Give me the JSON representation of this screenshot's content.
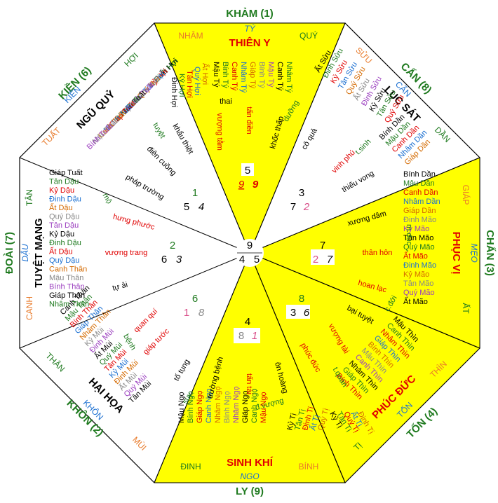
{
  "colors": {
    "yellow": "#ffff00",
    "trigram": "#1f7a1f",
    "branch_orange": "#e87a2a",
    "star_red": "#e00000",
    "branch_blue": "#1a6fd1",
    "pink": "#d94f8a"
  },
  "trigrams": {
    "kham": "KHẢM (1)",
    "can": "CẤN (8)",
    "chan": "CHẤN (3)",
    "ton": "TỐN (4)",
    "ly": "LY (9)",
    "khon": "KHÔN (2)",
    "doai": "ĐOÀI (7)",
    "kien": "KIỀN (6)"
  },
  "branches": {
    "nham": "NHÂM",
    "ty_n": "TÝ",
    "quy": "QUÝ",
    "suu": "SỬU",
    "can_b": "CẤN",
    "dan": "DẦN",
    "giap": "GIÁP",
    "mao": "MẸO",
    "at": "ẤT",
    "thin": "THÌN",
    "ton_b": "TỐN",
    "ti": "TỊ",
    "binh": "BÍNH",
    "ngo": "NGO",
    "dinh": "ĐINH",
    "mui": "MÙI",
    "khon_b": "KHÔN",
    "than": "THÂN",
    "canh": "CANH",
    "dau": "DẬU",
    "tan": "TÂN",
    "tuat": "TUẤT",
    "kien_b": "KIỀN",
    "hoi": "HỢI"
  },
  "stars": {
    "thien_y": "THIÊN Y",
    "luc_sat": "LỤC SÁT",
    "phuc_vi": "PHỤC VỊ",
    "phuc_duc": "PHÚC ĐỨC",
    "sinh_khi": "SINH KHÍ",
    "hai_hoa": "HẠI HỌA",
    "tuyet_mang": "TUYỆT MẠNG",
    "ngu_quy": "NGŨ QUỶ"
  },
  "minor": {
    "thai": "thai",
    "tan_dien": "tấn điền",
    "vuong_tam": "vượng tằm",
    "khoc_thap": "khốc thấp",
    "duong": "dưỡng",
    "co_qua": "cô quả",
    "vinh_phu": "vinh phú",
    "tsinh": "t.sinh",
    "thieu_vong": "thiếu vong",
    "xuong_dam": "xương dâm",
    "m_duc": "m.dục",
    "than_hon": "thân hôn",
    "hoan_lac": "hoan lạc",
    "bai_tuyet": "bại tuyệt",
    "c_doi": "c.đới",
    "vuong_tai": "vượng tài",
    "phuc_duc_s": "phúc đức",
    "t_quan": "t.quan",
    "on_hoang": "ôn hoàng",
    "tan_tai": "tấn tài",
    "d_vuong": "đ.vượng",
    "truong_benh": "trường bệnh",
    "to_tung": "tố tụng",
    "suy": "suy",
    "quan_qui": "quan quí",
    "giap_tuoc": "giáp tước",
    "benh": "bệnh",
    "tu": "tử",
    "hung_phuoc": "hưng phước",
    "vuong_trang": "vượng trang",
    "tu_ai": "tự ải",
    "mo": "mộ",
    "phap_truong": "pháp trường",
    "dien_cuong": "điên cuồng",
    "khau_thiet": "khẩu thiệt",
    "tuyet": "tuyệt"
  },
  "numbers": {
    "n1": "1",
    "n1a": "5",
    "n1b": "4",
    "n2": "2",
    "n2a": "6",
    "n2b": "3",
    "n3": "3",
    "n3a": "7",
    "n3b": "2",
    "n4": "4",
    "n4a": "8",
    "n4b": "1",
    "n5": "5",
    "n5a": "9",
    "n5b": "9",
    "n6": "6",
    "n6a": "1",
    "n6b": "8",
    "n7": "7",
    "n7a": "2",
    "n7b": "7",
    "n8": "8",
    "n8a": "3",
    "n8b": "6",
    "c9": "9",
    "c4": "4",
    "c5": "5"
  },
  "years": {
    "n": [
      "Mậu Tý",
      "Bính Tý",
      "Canh Tý",
      "Nhâm Tý",
      "Giáp Tý",
      "Bính Tý",
      "Mậu Tý",
      "Canh Tý",
      "Nhâm Tý"
    ],
    "n2": [
      "Đinh Hợi",
      "Kỷ Hợi",
      "Tân Hợi",
      "Quý Hợi",
      "Ất Hợi"
    ],
    "ne": [
      "Ất Sửu",
      "Đinh Sửu",
      "Kỷ Sửu",
      "Tân Sửu",
      "Quý Sửu",
      "Ất Sửu",
      "Đinh Sửu",
      "Kỷ Sửu",
      "Tân Sửu",
      "Quý Sửu"
    ],
    "ne2": [
      "Bính Dần",
      "Mậu Dần",
      "Canh Dần",
      "Nhâm Dần",
      "Giáp Dần"
    ],
    "e": [
      "Bính Dần",
      "Mậu Dần",
      "Canh Dần",
      "Nhâm Dần",
      "Giáp Dần",
      "Đinh Mão",
      "Kỷ Mão",
      "Tân Mão",
      "Quý Mão",
      "Ất Mão",
      "Đinh Mão",
      "Kỷ Mão",
      "Tân Mão",
      "Quý Mão",
      "Ất Mão"
    ],
    "se": [
      "Mậu Thìn",
      "Canh Thìn",
      "Nhâm Thìn",
      "Giáp Thìn",
      "Bính Thìn",
      "Mậu Thìn",
      "Canh Thìn",
      "Nhâm Thìn",
      "Giáp Thìn",
      "Bính Thìn"
    ],
    "se2": [
      "Kỷ Tị",
      "Tân Tị",
      "Quý Tị",
      "Ất Tị",
      "Đinh Tị"
    ],
    "s": [
      "Mậu Ngọ",
      "Bính Ngọ",
      "Giáp Ngọ",
      "Canh Ngọ",
      "Nhâm Ngọ",
      "Bính Ngọ",
      "Nhâm Ngọ",
      "Giáp Ngọ",
      "Canh Ngọ",
      "Mậu Ngọ"
    ],
    "s2": [
      "Kỷ Tị",
      "Tân Tị",
      "Đinh Tị",
      "Ất Tị",
      "Quý Tị"
    ],
    "sw": [
      "Canh Thân",
      "Mậu Thân",
      "Bính Thân",
      "Giáp Thân",
      "Nhâm Thân",
      "Kỷ Mùi",
      "Đinh Mùi",
      "Ất Mùi",
      "Quý Mùi",
      "Tân Mùi",
      "Kỷ Mùi",
      "Đinh Mùi",
      "Ất Mùi",
      "Quý Mùi",
      "Tân Mùi"
    ],
    "w": [
      "Giáp Tuất",
      "Tân Dậu",
      "Kỷ Dậu",
      "Đinh Dậu",
      "Ất Dậu",
      "Quý Dậu",
      "Tân Dậu",
      "Kỷ Dậu",
      "Đinh Dậu",
      "Ất Dậu",
      "Quý Dậu",
      "Canh Thân",
      "Mậu Thân",
      "Bính Thân",
      "Giáp Thân",
      "Nhâm Thân"
    ],
    "nw": [
      "Ất Hợi",
      "Đinh Hợi",
      "Kỷ Hợi",
      "Tân Hợi",
      "Quý Hợi",
      "Nhâm Tuất",
      "Canh Tuất",
      "Mậu Tuất",
      "Bính Tuất",
      "Giáp Tuất",
      "Nhâm Tuất",
      "Canh Tuất",
      "Mậu Tuất",
      "Bính Tuất"
    ]
  }
}
